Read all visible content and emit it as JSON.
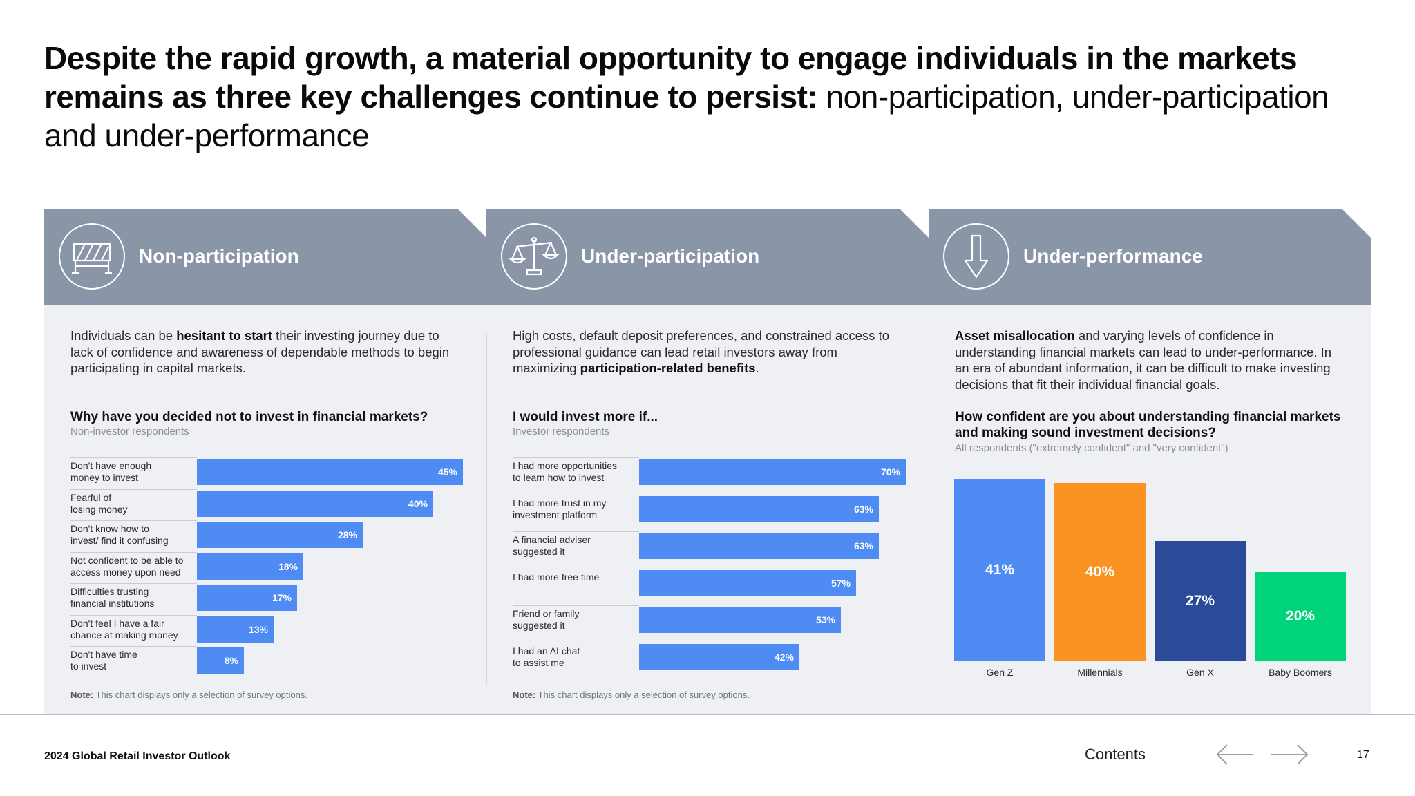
{
  "title": {
    "bold": "Despite the rapid growth, a material opportunity to engage individuals in the markets remains as three key challenges continue to persist:",
    "regular": " non-participation, under-participation and under-performance"
  },
  "panels": [
    {
      "heading": "Non-participation",
      "icon": "barrier-icon",
      "desc_parts": [
        "Individuals can be ",
        "hesitant to start",
        " their investing journey due to lack of confidence and awareness of dependable methods to begin participating in capital markets."
      ],
      "question": "Why have you decided not to invest in financial markets?",
      "subtitle": "Non-investor respondents",
      "note_label": "Note:",
      "note_text": " This chart displays only a selection of survey options."
    },
    {
      "heading": "Under-participation",
      "icon": "scales-icon",
      "desc_parts": [
        "High costs, default deposit preferences, and constrained access to professional guidance can lead retail investors away from maximizing ",
        "participation-related benefits",
        "."
      ],
      "question": "I would invest more if...",
      "subtitle": "Investor respondents",
      "note_label": "Note:",
      "note_text": " This chart displays only a selection of survey options."
    },
    {
      "heading": "Under-performance",
      "icon": "down-arrow-icon",
      "desc_parts": [
        "Asset misallocation",
        " and varying levels of confidence in understanding financial markets can lead to under-performance. In an era of abundant information, it can be difficult to make investing decisions that fit their individual financial goals."
      ],
      "question": "How confident are you about understanding financial markets and making sound investment decisions?",
      "subtitle": "All respondents (\"extremely confident\" and \"very confident\")"
    }
  ],
  "chart_data": [
    {
      "type": "bar",
      "orientation": "horizontal",
      "title": "Why have you decided not to invest in financial markets?",
      "subtitle": "Non-investor respondents",
      "categories": [
        "Don't have enough\nmoney to invest",
        "Fearful of\nlosing money",
        "Don't know how to\ninvest/ find it confusing",
        "Not confident to be able to\naccess money upon need",
        "Difficulties trusting\nfinancial institutions",
        "Don't feel I have a fair\nchance at making money",
        "Don't have time\nto invest"
      ],
      "values": [
        45,
        40,
        28,
        18,
        17,
        13,
        8
      ],
      "labels": [
        "45%",
        "40%",
        "28%",
        "18%",
        "17%",
        "13%",
        "8%"
      ],
      "unit": "%",
      "color": "#4e8cf4"
    },
    {
      "type": "bar",
      "orientation": "horizontal",
      "title": "I would invest more if...",
      "subtitle": "Investor respondents",
      "categories": [
        "I had more opportunities\nto learn how to invest",
        "I had more trust in my\ninvestment platform",
        "A financial adviser\nsuggested it",
        "I had more free time",
        "Friend or family\nsuggested it",
        "I had an AI chat\nto assist me"
      ],
      "values": [
        70,
        63,
        63,
        57,
        53,
        42
      ],
      "labels": [
        "70%",
        "63%",
        "63%",
        "57%",
        "53%",
        "42%"
      ],
      "unit": "%",
      "color": "#4e8cf4"
    },
    {
      "type": "bar",
      "orientation": "vertical",
      "title": "How confident are you about understanding financial markets and making sound investment decisions?",
      "subtitle": "All respondents (\"extremely confident\" and \"very confident\")",
      "categories": [
        "Gen Z",
        "Millennials",
        "Gen X",
        "Baby Boomers"
      ],
      "values": [
        41,
        40,
        27,
        20
      ],
      "labels": [
        "41%",
        "40%",
        "27%",
        "20%"
      ],
      "colors": [
        "#4e8cf4",
        "#fa9322",
        "#2a4a9a",
        "#00d37a"
      ],
      "unit": "%"
    }
  ],
  "footer": {
    "report": "2024 Global Retail Investor Outlook",
    "contents": "Contents",
    "page": "17"
  },
  "colors": {
    "header": "#8b95a8",
    "panel_bg": "#eff0f4",
    "bar": "#4e8cf4"
  }
}
